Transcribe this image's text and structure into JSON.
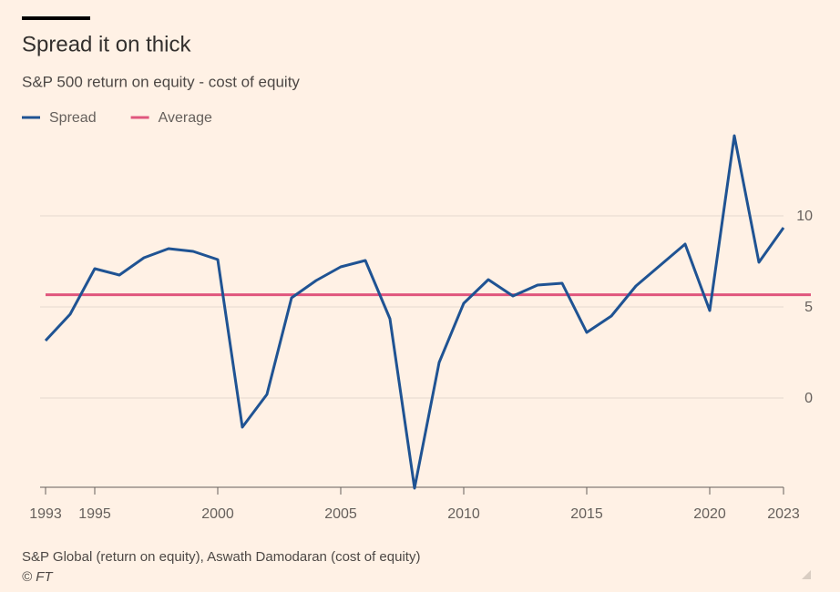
{
  "chart_data": {
    "type": "line",
    "title": "Spread it on thick",
    "subtitle": "S&P 500 return on equity - cost of equity",
    "source": "S&P Global (return on equity), Aswath Damodaran (cost of equity)",
    "credit": "© FT",
    "x": [
      1993,
      1994,
      1995,
      1996,
      1997,
      1998,
      1999,
      2000,
      2001,
      2002,
      2003,
      2004,
      2005,
      2006,
      2007,
      2008,
      2009,
      2010,
      2011,
      2012,
      2013,
      2014,
      2015,
      2016,
      2017,
      2018,
      2019,
      2020,
      2021,
      2022,
      2023
    ],
    "series": [
      {
        "name": "Spread",
        "color": "#1f5393",
        "values": [
          3.15,
          4.6,
          7.1,
          6.75,
          7.7,
          8.2,
          8.05,
          7.6,
          -1.6,
          0.2,
          5.5,
          6.45,
          7.2,
          7.55,
          4.35,
          -4.95,
          1.95,
          5.2,
          6.5,
          5.6,
          6.2,
          6.3,
          3.6,
          4.5,
          6.15,
          7.3,
          8.45,
          4.8,
          14.4,
          7.45,
          9.35
        ]
      }
    ],
    "average": {
      "name": "Average",
      "color": "#e0567d",
      "value": 5.67
    },
    "xlim": [
      1993,
      2023
    ],
    "xticks": [
      1993,
      1995,
      2000,
      2005,
      2010,
      2015,
      2020,
      2023
    ],
    "ylim": [
      -5,
      14.5
    ],
    "yticks": [
      0,
      5,
      10
    ],
    "grid": true
  }
}
